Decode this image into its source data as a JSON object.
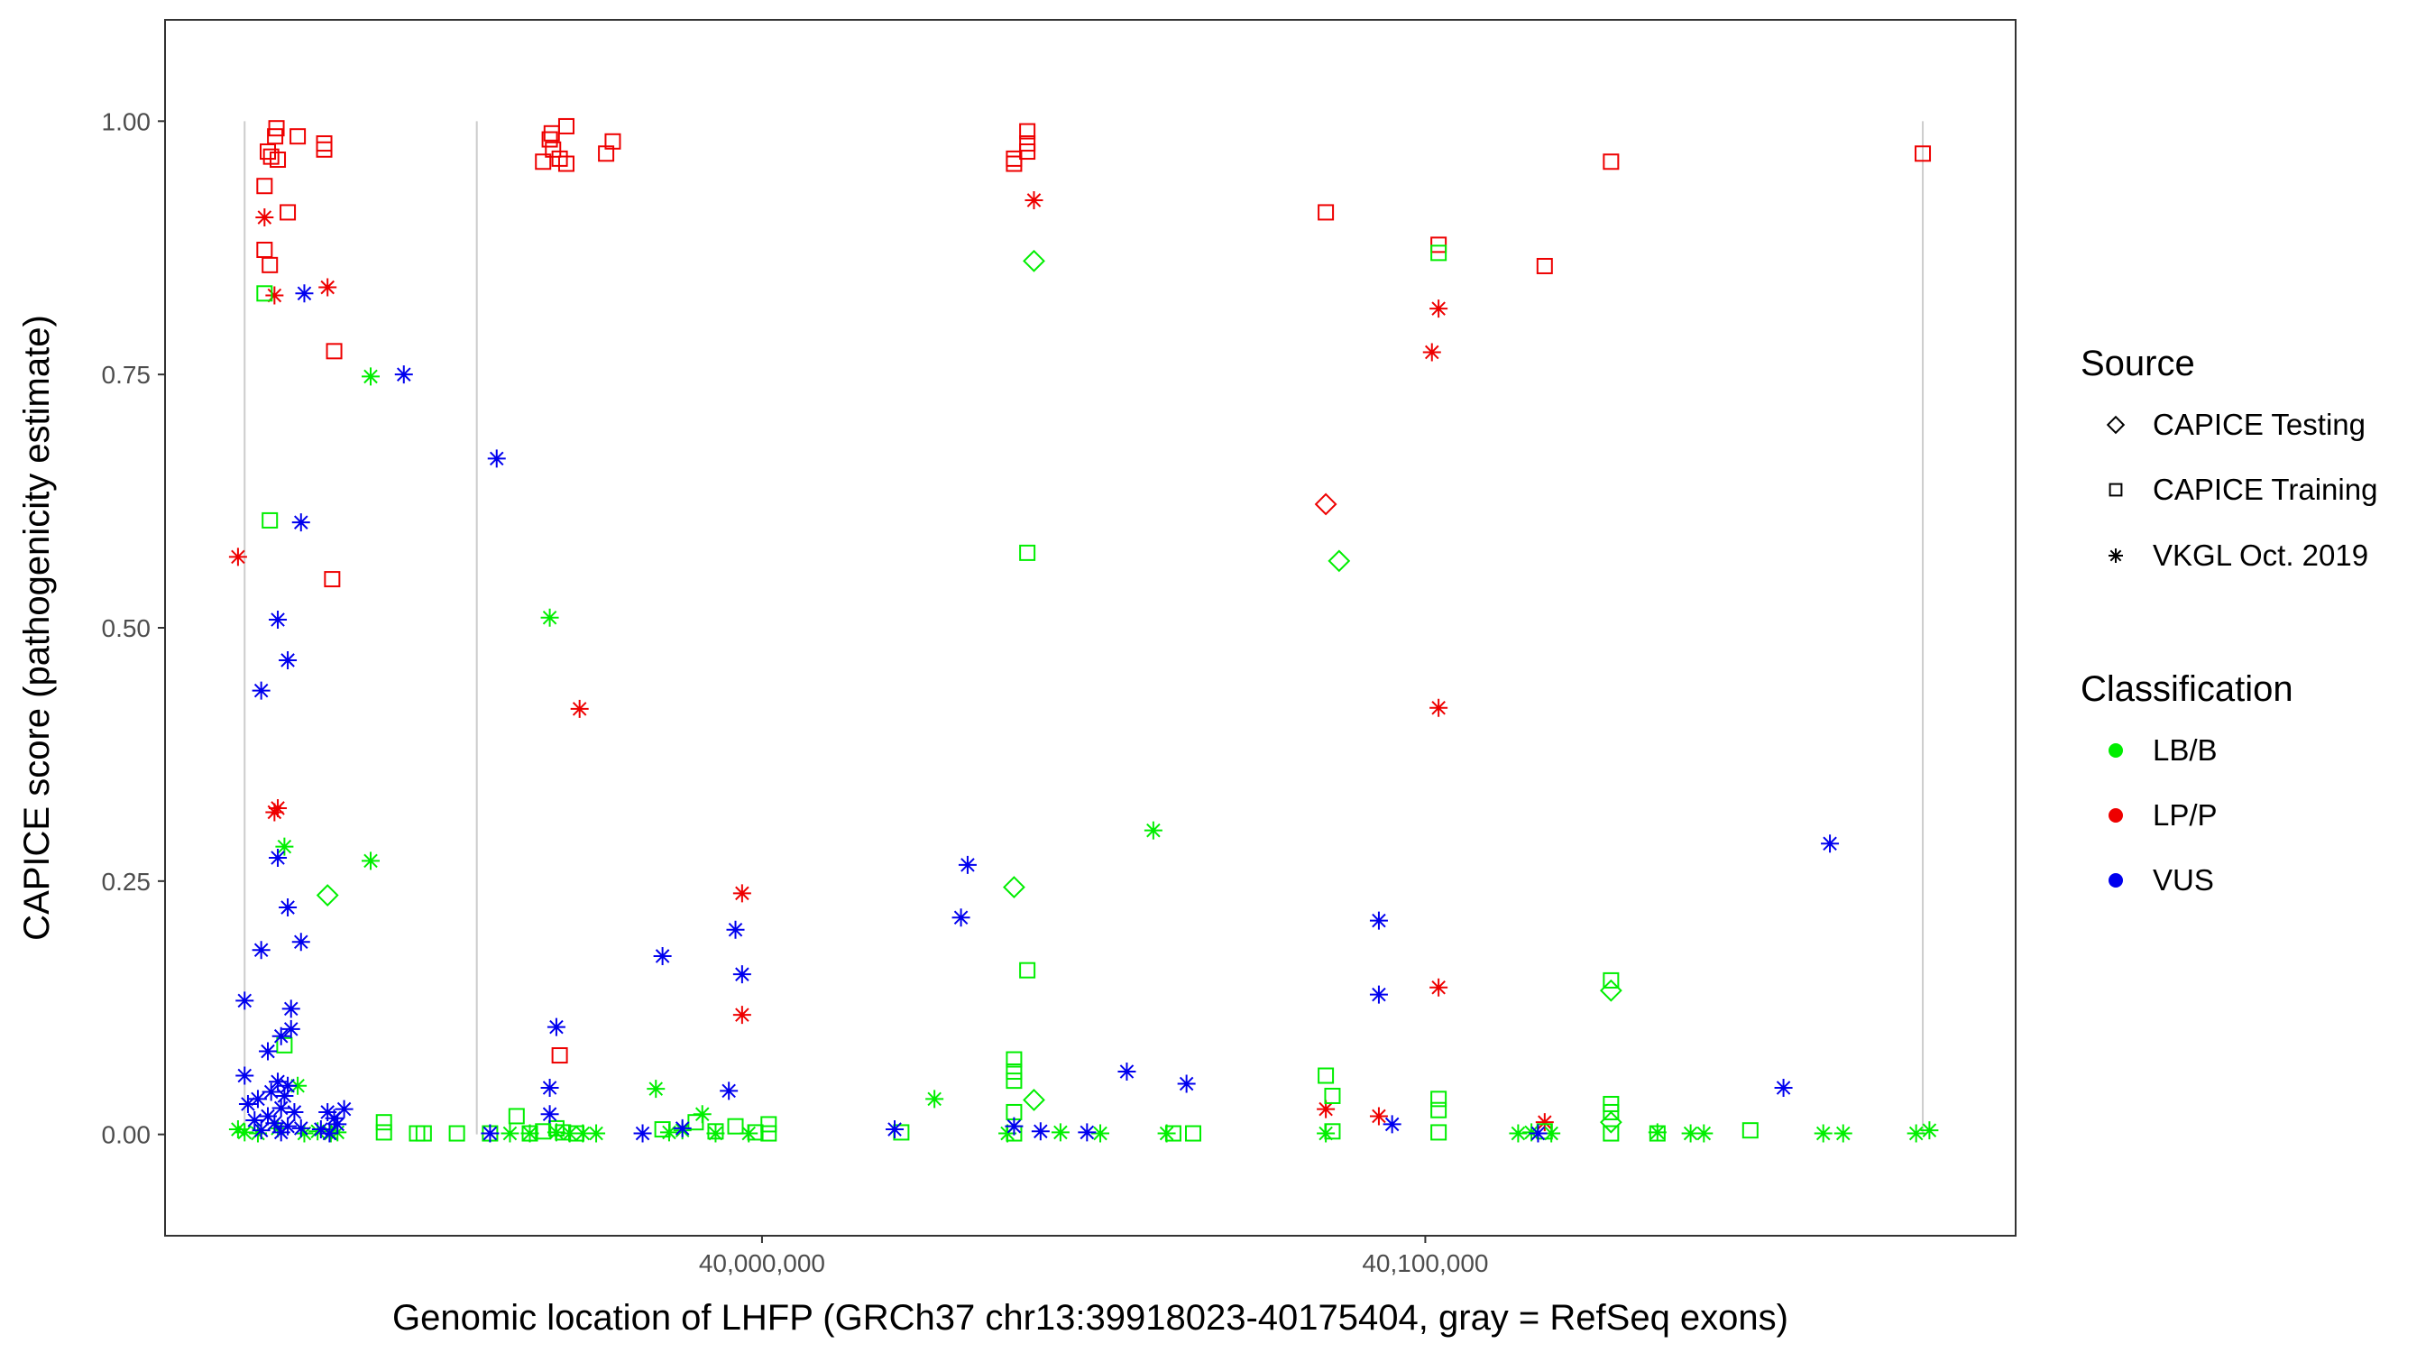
{
  "chart_data": {
    "type": "scatter",
    "title": "",
    "xlabel": "Genomic location of LHFP (GRCh37 chr13:39918023-40175404, gray = RefSeq exons)",
    "ylabel": "CAPICE score (pathogenicity estimate)",
    "xlim": [
      39910000,
      40189000
    ],
    "ylim": [
      -0.1,
      1.1
    ],
    "x_ticks": [
      40000000,
      40100000
    ],
    "x_tick_labels": [
      "40,000,000",
      "40,100,000"
    ],
    "y_ticks": [
      0,
      0.25,
      0.5,
      0.75,
      1.0
    ],
    "y_tick_labels": [
      "0.00",
      "0.25",
      "0.50",
      "0.75",
      "1.00"
    ],
    "exon_positions": [
      39922000,
      39957000,
      40175000
    ],
    "legend": {
      "source_title": "Source",
      "source_entries": [
        {
          "label": "CAPICE Testing",
          "shape": "diamond"
        },
        {
          "label": "CAPICE Training",
          "shape": "square"
        },
        {
          "label": "VKGL Oct. 2019",
          "shape": "asterisk"
        }
      ],
      "class_title": "Classification",
      "class_entries": [
        {
          "label": "LB/B",
          "color": "#00ee00"
        },
        {
          "label": "LP/P",
          "color": "#ee0000"
        },
        {
          "label": "VUS",
          "color": "#0000ee"
        }
      ]
    },
    "colors": {
      "LB/B": "#00ee00",
      "LP/P": "#ee0000",
      "VUS": "#0000ee"
    },
    "series": [
      {
        "name": "LP/P · CAPICE Training",
        "source": "CAPICE Training",
        "class": "LP/P",
        "points": [
          [
            39926800,
            0.993
          ],
          [
            39926600,
            0.985
          ],
          [
            39925500,
            0.97
          ],
          [
            39926000,
            0.965
          ],
          [
            39927000,
            0.962
          ],
          [
            39930000,
            0.985
          ],
          [
            39934000,
            0.978
          ],
          [
            39934000,
            0.972
          ],
          [
            39928500,
            0.91
          ],
          [
            39925000,
            0.936
          ],
          [
            39925000,
            0.873
          ],
          [
            39925800,
            0.858
          ],
          [
            39935500,
            0.773
          ],
          [
            39935200,
            0.548
          ],
          [
            39967000,
            0.96
          ],
          [
            39968000,
            0.982
          ],
          [
            39968500,
            0.972
          ],
          [
            39969500,
            0.963
          ],
          [
            39970500,
            0.958
          ],
          [
            39970500,
            0.995
          ],
          [
            39968300,
            0.988
          ],
          [
            39976500,
            0.968
          ],
          [
            39977500,
            0.98
          ],
          [
            39969500,
            0.078
          ],
          [
            40040000,
            0.99
          ],
          [
            40040000,
            0.978
          ],
          [
            40040000,
            0.97
          ],
          [
            40038000,
            0.963
          ],
          [
            40038000,
            0.958
          ],
          [
            40085000,
            0.91
          ],
          [
            40102000,
            0.878
          ],
          [
            40118000,
            0.857
          ],
          [
            40128000,
            0.96
          ],
          [
            40175000,
            0.968
          ]
        ]
      },
      {
        "name": "LP/P · VKGL Oct. 2019",
        "source": "VKGL Oct. 2019",
        "class": "LP/P",
        "points": [
          [
            39921000,
            0.57
          ],
          [
            39925000,
            0.905
          ],
          [
            39926500,
            0.828
          ],
          [
            39934500,
            0.836
          ],
          [
            39926500,
            0.318
          ],
          [
            39927000,
            0.322
          ],
          [
            39972500,
            0.42
          ],
          [
            39997000,
            0.238
          ],
          [
            39997000,
            0.118
          ],
          [
            40041000,
            0.922
          ],
          [
            40101000,
            0.772
          ],
          [
            40102000,
            0.815
          ],
          [
            40102000,
            0.421
          ],
          [
            40102000,
            0.145
          ],
          [
            40085000,
            0.025
          ],
          [
            40093000,
            0.018
          ],
          [
            40118000,
            0.012
          ]
        ]
      },
      {
        "name": "LP/P · CAPICE Testing",
        "source": "CAPICE Testing",
        "class": "LP/P",
        "points": [
          [
            40085000,
            0.622
          ]
        ]
      },
      {
        "name": "LB/B · CAPICE Training",
        "source": "CAPICE Training",
        "class": "LB/B",
        "points": [
          [
            39925000,
            0.83
          ],
          [
            39925800,
            0.606
          ],
          [
            39928000,
            0.088
          ],
          [
            39943000,
            0.012
          ],
          [
            39943000,
            0.002
          ],
          [
            39948000,
            0.001
          ],
          [
            39949000,
            0.001
          ],
          [
            39954000,
            0.001
          ],
          [
            39959000,
            0.001
          ],
          [
            39963000,
            0.018
          ],
          [
            39965000,
            0.001
          ],
          [
            39967000,
            0.003
          ],
          [
            39969000,
            0.006
          ],
          [
            39970000,
            0.002
          ],
          [
            39972000,
            0.001
          ],
          [
            39985000,
            0.005
          ],
          [
            39990000,
            0.012
          ],
          [
            39993000,
            0.003
          ],
          [
            39996000,
            0.008
          ],
          [
            39999000,
            0.002
          ],
          [
            40001000,
            0.01
          ],
          [
            40001000,
            0.001
          ],
          [
            40021000,
            0.002
          ],
          [
            40038000,
            0.074
          ],
          [
            40038000,
            0.062
          ],
          [
            40038000,
            0.053
          ],
          [
            40038000,
            0.022
          ],
          [
            40038000,
            0.001
          ],
          [
            40040000,
            0.574
          ],
          [
            40040000,
            0.162
          ],
          [
            40062000,
            0.001
          ],
          [
            40065000,
            0.001
          ],
          [
            40085000,
            0.058
          ],
          [
            40086000,
            0.038
          ],
          [
            40086000,
            0.003
          ],
          [
            40102000,
            0.87
          ],
          [
            40102000,
            0.035
          ],
          [
            40102000,
            0.024
          ],
          [
            40102000,
            0.002
          ],
          [
            40118000,
            0.003
          ],
          [
            40128000,
            0.152
          ],
          [
            40128000,
            0.03
          ],
          [
            40128000,
            0.022
          ],
          [
            40128000,
            0.001
          ],
          [
            40135000,
            0.001
          ],
          [
            40149000,
            0.004
          ]
        ]
      },
      {
        "name": "LB/B · CAPICE Testing",
        "source": "CAPICE Testing",
        "class": "LB/B",
        "points": [
          [
            39934500,
            0.236
          ],
          [
            40041000,
            0.862
          ],
          [
            40038000,
            0.244
          ],
          [
            40041000,
            0.034
          ],
          [
            40087000,
            0.566
          ],
          [
            40128000,
            0.142
          ],
          [
            40128000,
            0.012
          ]
        ]
      },
      {
        "name": "LB/B · VKGL Oct. 2019",
        "source": "VKGL Oct. 2019",
        "class": "LB/B",
        "points": [
          [
            39941000,
            0.748
          ],
          [
            39941000,
            0.27
          ],
          [
            39928000,
            0.284
          ],
          [
            39930000,
            0.048
          ],
          [
            39921000,
            0.005
          ],
          [
            39922000,
            0.002
          ],
          [
            39924000,
            0.001
          ],
          [
            39927000,
            0.006
          ],
          [
            39931000,
            0.001
          ],
          [
            39933000,
            0.003
          ],
          [
            39935000,
            0.001
          ],
          [
            39936000,
            0.002
          ],
          [
            39962000,
            0.001
          ],
          [
            39965000,
            0.001
          ],
          [
            39968000,
            0.51
          ],
          [
            39969000,
            0.002
          ],
          [
            39971000,
            0.001
          ],
          [
            39973000,
            0.001
          ],
          [
            39975000,
            0.001
          ],
          [
            39984000,
            0.045
          ],
          [
            39986000,
            0.002
          ],
          [
            39988000,
            0.004
          ],
          [
            39991000,
            0.02
          ],
          [
            39993000,
            0.001
          ],
          [
            39998000,
            0.001
          ],
          [
            40026000,
            0.035
          ],
          [
            40037000,
            0.001
          ],
          [
            40045000,
            0.002
          ],
          [
            40051000,
            0.001
          ],
          [
            40059000,
            0.3
          ],
          [
            40061000,
            0.001
          ],
          [
            40085000,
            0.001
          ],
          [
            40114000,
            0.001
          ],
          [
            40116000,
            0.002
          ],
          [
            40119000,
            0.001
          ],
          [
            40135000,
            0.002
          ],
          [
            40140000,
            0.001
          ],
          [
            40142000,
            0.001
          ],
          [
            40160000,
            0.001
          ],
          [
            40163000,
            0.001
          ],
          [
            40174000,
            0.001
          ],
          [
            40176000,
            0.004
          ]
        ]
      },
      {
        "name": "VUS · VKGL Oct. 2019",
        "source": "VKGL Oct. 2019",
        "class": "VUS",
        "points": [
          [
            39931000,
            0.83
          ],
          [
            39946000,
            0.75
          ],
          [
            39960000,
            0.667
          ],
          [
            39930500,
            0.604
          ],
          [
            39927000,
            0.508
          ],
          [
            39928500,
            0.468
          ],
          [
            39924500,
            0.438
          ],
          [
            39927000,
            0.273
          ],
          [
            39928500,
            0.224
          ],
          [
            39930500,
            0.19
          ],
          [
            39924500,
            0.182
          ],
          [
            39922000,
            0.132
          ],
          [
            39929000,
            0.124
          ],
          [
            39929000,
            0.104
          ],
          [
            39927500,
            0.097
          ],
          [
            39925500,
            0.082
          ],
          [
            39922000,
            0.058
          ],
          [
            39927000,
            0.052
          ],
          [
            39928500,
            0.048
          ],
          [
            39926000,
            0.042
          ],
          [
            39928000,
            0.038
          ],
          [
            39924000,
            0.035
          ],
          [
            39922500,
            0.03
          ],
          [
            39927500,
            0.026
          ],
          [
            39929500,
            0.022
          ],
          [
            39925500,
            0.018
          ],
          [
            39923500,
            0.014
          ],
          [
            39926500,
            0.011
          ],
          [
            39928500,
            0.008
          ],
          [
            39930500,
            0.006
          ],
          [
            39924500,
            0.004
          ],
          [
            39927500,
            0.002
          ],
          [
            39934500,
            0.022
          ],
          [
            39935500,
            0.016
          ],
          [
            39936000,
            0.01
          ],
          [
            39937000,
            0.025
          ],
          [
            39933500,
            0.005
          ],
          [
            39934800,
            0.001
          ],
          [
            39968000,
            0.046
          ],
          [
            39968000,
            0.02
          ],
          [
            39969000,
            0.106
          ],
          [
            39959000,
            0.001
          ],
          [
            39982000,
            0.001
          ],
          [
            39985000,
            0.176
          ],
          [
            39996000,
            0.202
          ],
          [
            39997000,
            0.158
          ],
          [
            39995000,
            0.043
          ],
          [
            39988000,
            0.006
          ],
          [
            40020000,
            0.005
          ],
          [
            40031000,
            0.266
          ],
          [
            40030000,
            0.214
          ],
          [
            40038000,
            0.008
          ],
          [
            40042000,
            0.003
          ],
          [
            40049000,
            0.002
          ],
          [
            40055000,
            0.062
          ],
          [
            40064000,
            0.05
          ],
          [
            40093000,
            0.211
          ],
          [
            40093000,
            0.138
          ],
          [
            40095000,
            0.01
          ],
          [
            40117000,
            0.001
          ],
          [
            40154000,
            0.046
          ],
          [
            40161000,
            0.287
          ]
        ]
      }
    ]
  }
}
